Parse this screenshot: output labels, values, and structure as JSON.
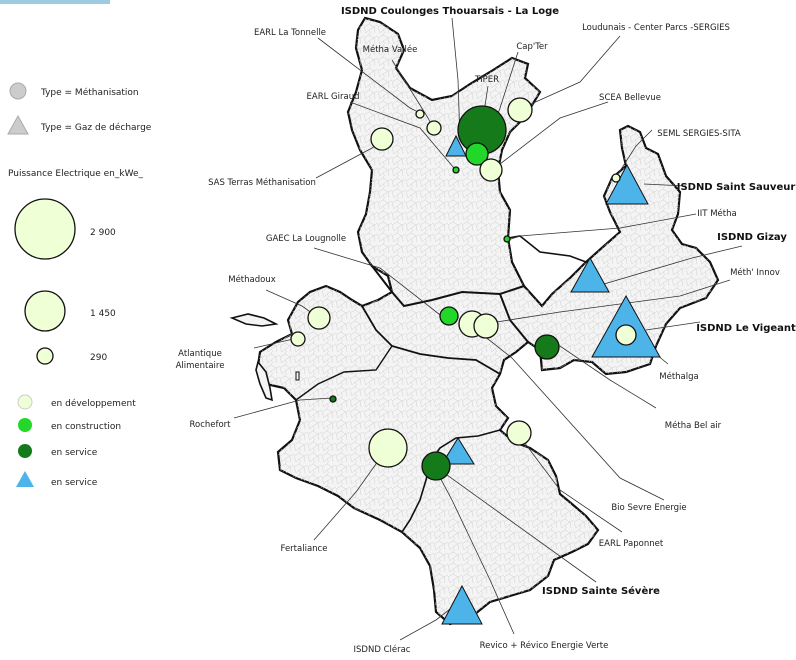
{
  "colors": {
    "dev": "#efffd6",
    "construction": "#22d62a",
    "service": "#157a1a",
    "landfill": "#4db4ea",
    "region_fill": "#f4f4f4",
    "region_stroke": "#111111",
    "commune_stroke": "#c8c8c8",
    "header_bar": "#9ecbe0"
  },
  "legend": {
    "type_methanisation": "Type = Méthanisation",
    "type_gaz_decharge": "Type = Gaz de décharge",
    "puissance_title": "Puissance Electrique en_kWe_",
    "sizes": [
      {
        "value": "2 900"
      },
      {
        "value": "1 450"
      },
      {
        "value": "290"
      }
    ],
    "status": [
      {
        "label": "en développement",
        "color_key": "dev",
        "shape": "circle"
      },
      {
        "label": "en construction",
        "color_key": "construction",
        "shape": "circle"
      },
      {
        "label": "en service",
        "color_key": "service",
        "shape": "circle"
      },
      {
        "label": "en service",
        "color_key": "landfill",
        "shape": "triangle"
      }
    ]
  },
  "sites": [
    {
      "name": "ISDND Coulonges Thouarsais - La Loge",
      "type": "gaz de décharge",
      "status": "en service",
      "bold": true
    },
    {
      "name": "EARL La Tonnelle",
      "type": "méthanisation",
      "status": "en développement"
    },
    {
      "name": "Métha Vallée",
      "type": "méthanisation",
      "status": "en développement"
    },
    {
      "name": "EARL Giraud",
      "type": "méthanisation",
      "status": "en service"
    },
    {
      "name": "TIPER",
      "type": "méthanisation",
      "status": "en service"
    },
    {
      "name": "Cap'Ter",
      "type": "méthanisation",
      "status": "en construction"
    },
    {
      "name": "Loudunais - Center Parcs -SERGIES",
      "type": "méthanisation",
      "status": "en développement"
    },
    {
      "name": "SCEA Bellevue",
      "type": "méthanisation",
      "status": "en développement"
    },
    {
      "name": "SAS Terras Méthanisation",
      "type": "méthanisation",
      "status": "en développement"
    },
    {
      "name": "SEML SERGIES-SITA",
      "type": "méthanisation",
      "status": "en développement"
    },
    {
      "name": "ISDND Saint Sauveur",
      "type": "gaz de décharge",
      "status": "en service",
      "bold": true
    },
    {
      "name": "IIT Métha",
      "type": "méthanisation",
      "status": "en construction"
    },
    {
      "name": "ISDND Gizay",
      "type": "gaz de décharge",
      "status": "en service",
      "bold": true
    },
    {
      "name": "GAEC La Lougnolle",
      "type": "méthanisation",
      "status": "en construction"
    },
    {
      "name": "Méth' Innov",
      "type": "méthanisation",
      "status": "en développement"
    },
    {
      "name": "Méthadoux",
      "type": "méthanisation",
      "status": "en développement"
    },
    {
      "name": "ISDND Le Vigeant",
      "type": "gaz de décharge",
      "status": "en service",
      "bold": true
    },
    {
      "name": "Atlantique Alimentaire",
      "type": "méthanisation",
      "status": "en développement",
      "lines": [
        "Atlantique",
        "Alimentaire"
      ]
    },
    {
      "name": "Méthalga",
      "type": "méthanisation",
      "status": "en développement"
    },
    {
      "name": "Rochefort",
      "type": "méthanisation",
      "status": "en service"
    },
    {
      "name": "Métha Bel air",
      "type": "méthanisation",
      "status": "en service"
    },
    {
      "name": "Bio Sevre Energie",
      "type": "méthanisation",
      "status": "en développement"
    },
    {
      "name": "Fertaliance",
      "type": "méthanisation",
      "status": "en développement"
    },
    {
      "name": "EARL Paponnet",
      "type": "méthanisation",
      "status": "en développement"
    },
    {
      "name": "ISDND Sainte Sévère",
      "type": "gaz de décharge",
      "status": "en service",
      "bold": true
    },
    {
      "name": "ISDND Clérac",
      "type": "gaz de décharge",
      "status": "en service"
    },
    {
      "name": "Revico + Révico Energie Verte",
      "type": "méthanisation",
      "status": "en service"
    }
  ]
}
